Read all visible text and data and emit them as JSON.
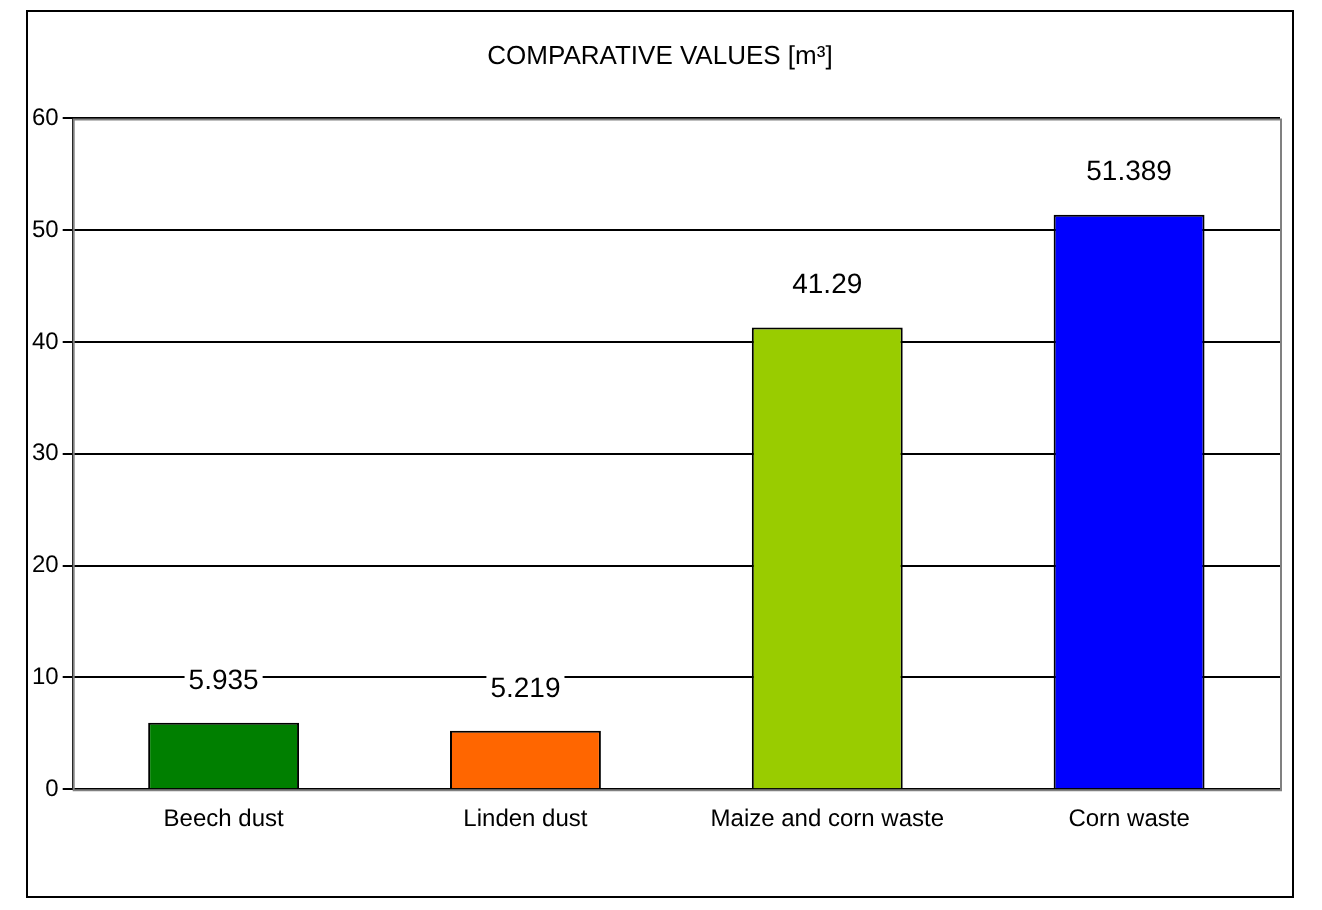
{
  "chart_data": {
    "type": "bar",
    "title": "COMPARATIVE VALUES [m³]",
    "categories": [
      "Beech dust",
      "Linden dust",
      "Maize and corn waste",
      "Corn waste"
    ],
    "values": [
      5.935,
      5.219,
      41.29,
      51.389
    ],
    "colors": [
      "#007f00",
      "#ff6600",
      "#99cc00",
      "#0000ff"
    ],
    "ylim": [
      0,
      60
    ],
    "yticks": [
      0,
      10,
      20,
      30,
      40,
      50,
      60
    ],
    "grid": "y",
    "data_labels": true,
    "legend": false
  }
}
